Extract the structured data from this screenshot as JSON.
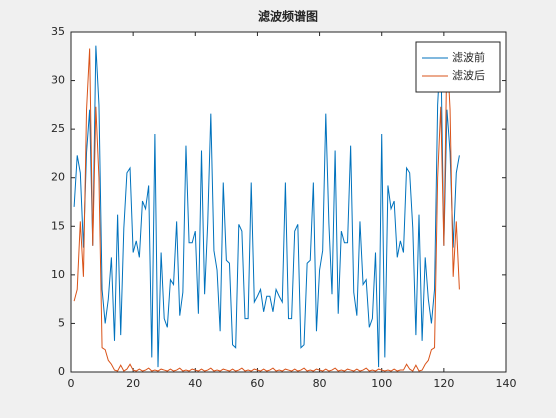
{
  "chart_data": {
    "type": "line",
    "title": "滤波频谱图",
    "x": [
      1,
      2,
      3,
      4,
      5,
      6,
      7,
      8,
      9,
      10,
      11,
      12,
      13,
      14,
      15,
      16,
      17,
      18,
      19,
      20,
      21,
      22,
      23,
      24,
      25,
      26,
      27,
      28,
      29,
      30,
      31,
      32,
      33,
      34,
      35,
      36,
      37,
      38,
      39,
      40,
      41,
      42,
      43,
      44,
      45,
      46,
      47,
      48,
      49,
      50,
      51,
      52,
      53,
      54,
      55,
      56,
      57,
      58,
      59,
      60,
      61,
      62,
      63,
      64,
      65,
      66,
      67,
      68,
      69,
      70,
      71,
      72,
      73,
      74,
      75,
      76,
      77,
      78,
      79,
      80,
      81,
      82,
      83,
      84,
      85,
      86,
      87,
      88,
      89,
      90,
      91,
      92,
      93,
      94,
      95,
      96,
      97,
      98,
      99,
      100,
      101,
      102,
      103,
      104,
      105,
      106,
      107,
      108,
      109,
      110,
      111,
      112,
      113,
      114,
      115,
      116,
      117,
      118,
      119,
      120,
      121,
      122,
      123,
      124,
      125
    ],
    "series": [
      {
        "name": "滤波前",
        "color": "#0072bd",
        "values": [
          17,
          22.3,
          20.5,
          12.8,
          22.6,
          27,
          13,
          33.6,
          27.5,
          8.5,
          5,
          7.5,
          11.8,
          3.2,
          16.2,
          3.8,
          14.8,
          20.5,
          21,
          12.3,
          13.5,
          11.8,
          17.6,
          16.8,
          19.2,
          1.5,
          24.5,
          0.5,
          12.3,
          5.5,
          4.6,
          9.5,
          9,
          15.5,
          5.8,
          8.2,
          23.3,
          13.3,
          13.3,
          14.5,
          6,
          22.8,
          8,
          15.3,
          26.6,
          12.5,
          10.5,
          4.2,
          19.5,
          11.5,
          11.2,
          2.8,
          2.5,
          15.2,
          14.5,
          5.5,
          5.5,
          19.5,
          7.2,
          7.8,
          8.5,
          6.2,
          7.8,
          7.8,
          6.2,
          8.5,
          7.8,
          7.2,
          19.5,
          5.5,
          5.5,
          14.5,
          15.2,
          2.5,
          2.8,
          11.2,
          11.5,
          19.5,
          4.2,
          10.5,
          12.5,
          26.6,
          15.3,
          8,
          22.8,
          6,
          14.5,
          13.3,
          13.3,
          23.3,
          8.2,
          5.8,
          15.5,
          9,
          9.5,
          4.6,
          5.5,
          12.3,
          0.5,
          24.5,
          1.5,
          19.2,
          16.8,
          17.6,
          11.8,
          13.5,
          12.3,
          21,
          20.5,
          14.8,
          3.8,
          16.2,
          3.2,
          11.8,
          7.5,
          5,
          8.5,
          27.5,
          33.6,
          13,
          27,
          22.6,
          12.8,
          20.5,
          22.3
        ]
      },
      {
        "name": "滤波后",
        "color": "#d95319",
        "values": [
          7.3,
          8.5,
          15.5,
          9.8,
          27,
          33.3,
          13,
          27.3,
          20,
          2.5,
          2.3,
          1.2,
          0.8,
          0.2,
          0.1,
          0.7,
          0.1,
          0.3,
          0.8,
          0.2,
          0.1,
          0.3,
          0.1,
          0.2,
          0.4,
          0.1,
          0.2,
          0.1,
          0.3,
          0.2,
          0.1,
          0.3,
          0.1,
          0.2,
          0.4,
          0.1,
          0.2,
          0.1,
          0.3,
          0.2,
          0.1,
          0.3,
          0.1,
          0.2,
          0.4,
          0.1,
          0.2,
          0.1,
          0.3,
          0.2,
          0.1,
          0.3,
          0.1,
          0.2,
          0.4,
          0.1,
          0.2,
          0.1,
          0.3,
          0.2,
          0.1,
          0.3,
          0.1,
          0.2,
          0.4,
          0.1,
          0.2,
          0.1,
          0.3,
          0.2,
          0.1,
          0.3,
          0.1,
          0.2,
          0.4,
          0.1,
          0.2,
          0.1,
          0.3,
          0.2,
          0.1,
          0.3,
          0.1,
          0.2,
          0.4,
          0.1,
          0.2,
          0.1,
          0.3,
          0.2,
          0.1,
          0.3,
          0.1,
          0.2,
          0.4,
          0.1,
          0.2,
          0.1,
          0.3,
          0.2,
          0.1,
          0.2,
          0.1,
          0.3,
          0.1,
          0.2,
          0.2,
          0.8,
          0.3,
          0.1,
          0.7,
          0.1,
          0.2,
          0.8,
          1.2,
          2.3,
          2.5,
          20,
          27.3,
          13,
          33.3,
          27,
          9.8,
          15.5,
          8.5
        ]
      }
    ],
    "xlim": [
      0,
      140
    ],
    "xticks": [
      0,
      20,
      40,
      60,
      80,
      100,
      120,
      140
    ],
    "ylim": [
      0,
      35
    ],
    "yticks": [
      0,
      5,
      10,
      15,
      20,
      25,
      30,
      35
    ],
    "grid": false,
    "legend": "upper-right"
  }
}
